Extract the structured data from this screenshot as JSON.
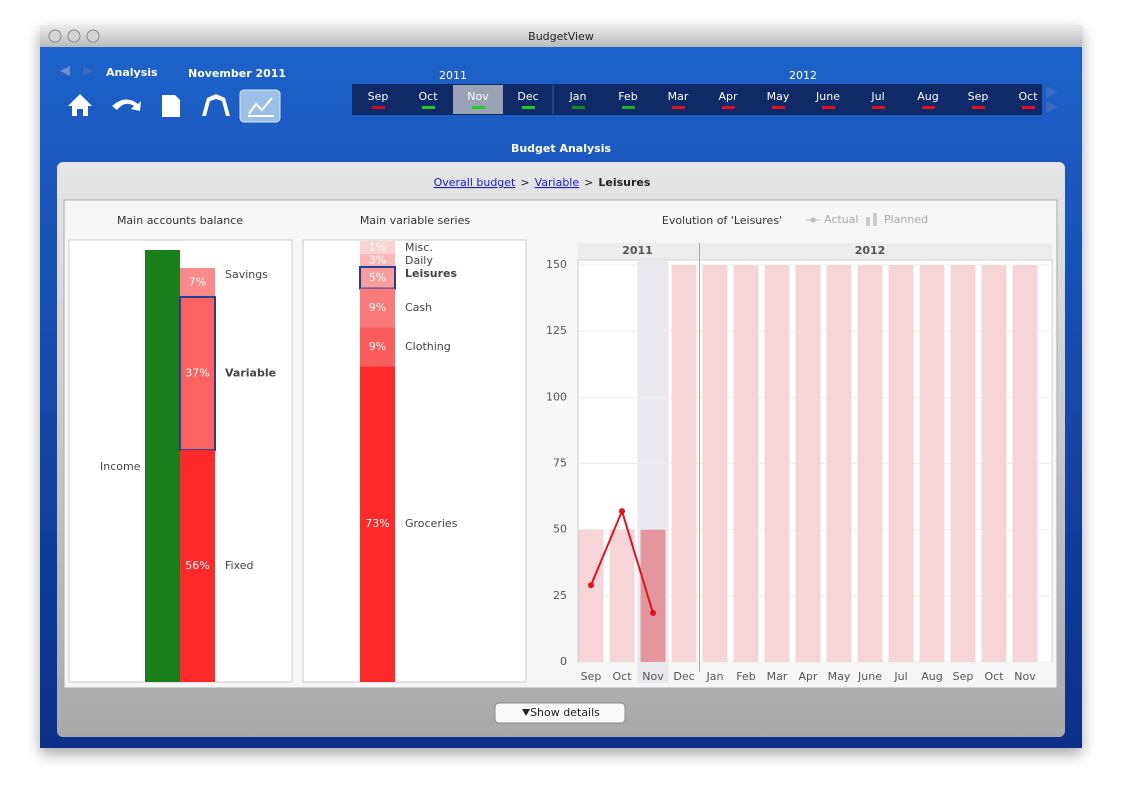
{
  "window": {
    "title": "BudgetView"
  },
  "header": {
    "title": "Analysis",
    "period": "November 2011"
  },
  "timeline": {
    "years": [
      {
        "label": "2011",
        "months": [
          {
            "label": "Sep",
            "status": "#c8101c"
          },
          {
            "label": "Oct",
            "status": "#22cc22"
          },
          {
            "label": "Nov",
            "status": "#22cc22",
            "selected": true
          },
          {
            "label": "Dec",
            "status": "#22cc22"
          }
        ]
      },
      {
        "label": "2012",
        "months": [
          {
            "label": "Jan",
            "status": "#168a16"
          },
          {
            "label": "Feb",
            "status": "#22aa22"
          },
          {
            "label": "Mar",
            "status": "#e0101c"
          },
          {
            "label": "Apr",
            "status": "#e0101c"
          },
          {
            "label": "May",
            "status": "#e0101c"
          },
          {
            "label": "June",
            "status": "#e0101c"
          },
          {
            "label": "Jul",
            "status": "#e0101c"
          },
          {
            "label": "Aug",
            "status": "#e0101c"
          },
          {
            "label": "Sep",
            "status": "#e0101c"
          },
          {
            "label": "Oct",
            "status": "#e0101c"
          }
        ]
      }
    ]
  },
  "section_title": "Budget Analysis",
  "breadcrumb": {
    "links": [
      "Overall budget",
      "Variable"
    ],
    "current": "Leisures",
    "separator": ">"
  },
  "balance": {
    "title": "Main accounts balance",
    "income": {
      "name": "Income",
      "color": "#1a7f1a"
    },
    "categories": [
      "Savings",
      "Variable",
      "Fixed"
    ],
    "values": [
      7,
      37,
      56
    ],
    "value_labels": [
      "7%",
      "37%",
      "56%"
    ],
    "colors": [
      "#fb8a8a",
      "#fb6262",
      "#fe2a2a"
    ],
    "highlight": [
      false,
      true,
      false
    ]
  },
  "series": {
    "title": "Main variable series",
    "categories": [
      "Misc.",
      "Daily",
      "Leisures",
      "Cash",
      "Clothing",
      "Groceries"
    ],
    "values": [
      1,
      3,
      5,
      9,
      9,
      73
    ],
    "value_labels": [
      "1%",
      "3%",
      "5%",
      "9%",
      "9%",
      "73%"
    ],
    "colors": [
      "#fbd2d2",
      "#fab8b8",
      "#f99c9c",
      "#fa7a7a",
      "#fb5c5c",
      "#fe2a2a"
    ],
    "highlight": [
      false,
      false,
      true,
      false,
      false,
      false
    ]
  },
  "evolution": {
    "type": "bar",
    "title": "Evolution of 'Leisures'",
    "groups": [
      {
        "label": "2011",
        "categories": [
          "Sep",
          "Oct",
          "Nov",
          "Dec"
        ]
      },
      {
        "label": "2012",
        "categories": [
          "Jan",
          "Feb",
          "Mar",
          "Apr",
          "May",
          "June",
          "Jul",
          "Aug",
          "Sep",
          "Oct",
          "Nov"
        ]
      }
    ],
    "highlight": [
      false,
      false,
      true,
      false,
      false,
      false,
      false,
      false,
      false,
      false,
      false,
      false,
      false,
      false,
      false
    ],
    "series": [
      {
        "name": "Actual",
        "type": "line",
        "color": "#e8101a",
        "values": [
          29,
          57,
          18.5,
          null,
          null,
          null,
          null,
          null,
          null,
          null,
          null,
          null,
          null,
          null,
          null
        ]
      },
      {
        "name": "Planned",
        "type": "bar",
        "color": "#f5d5d8",
        "highlight_color": "#e3979c",
        "values": [
          50,
          50,
          50,
          150,
          150,
          150,
          150,
          150,
          150,
          150,
          150,
          150,
          150,
          150,
          150
        ]
      }
    ],
    "ylim": [
      0,
      150
    ],
    "yticks": [
      0,
      25,
      50,
      75,
      100,
      125,
      150
    ],
    "grid": true
  },
  "button": {
    "label": "Show details"
  }
}
